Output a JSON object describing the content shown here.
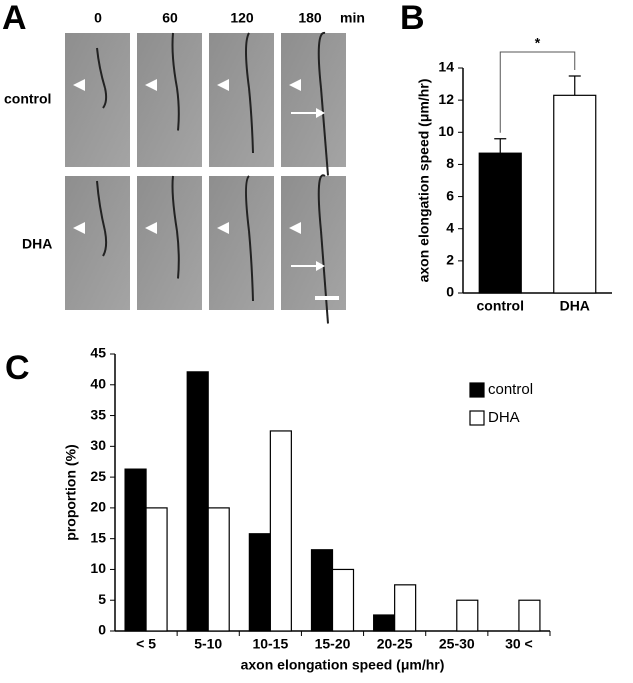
{
  "panel_a": {
    "panel_label": "A",
    "time_points": [
      "0",
      "60",
      "120",
      "180"
    ],
    "time_unit": "min",
    "rows": [
      "control",
      "DHA"
    ]
  },
  "chart_data": [
    {
      "type": "bar",
      "panel_label": "B",
      "categories": [
        "control",
        "DHA"
      ],
      "values": [
        8.7,
        12.3
      ],
      "errors": [
        0.9,
        1.2
      ],
      "colors": [
        "#000000",
        "#ffffff"
      ],
      "ylabel": "axon elongation speed (μm/hr)",
      "annotation": "*",
      "ylim": [
        0,
        14
      ],
      "yticks": [
        0,
        2,
        4,
        6,
        8,
        10,
        12,
        14
      ],
      "grid": false
    },
    {
      "type": "grouped_bar",
      "panel_label": "C",
      "categories": [
        "< 5",
        "5-10",
        "10-15",
        "15-20",
        "20-25",
        "25-30",
        "30 <"
      ],
      "series": [
        {
          "name": "control",
          "color": "#000000",
          "values": [
            26.3,
            42.1,
            15.8,
            13.2,
            2.6,
            0,
            0
          ]
        },
        {
          "name": "DHA",
          "color": "#ffffff",
          "values": [
            20,
            20,
            32.5,
            10,
            7.5,
            5,
            5
          ]
        }
      ],
      "xlabel": "axon elongation speed (μm/hr)",
      "ylabel": "proportion (%)",
      "legend": "upper right",
      "ylim": [
        0,
        45
      ],
      "yticks": [
        0,
        5,
        10,
        15,
        20,
        25,
        30,
        35,
        40,
        45
      ],
      "grid": false
    }
  ]
}
